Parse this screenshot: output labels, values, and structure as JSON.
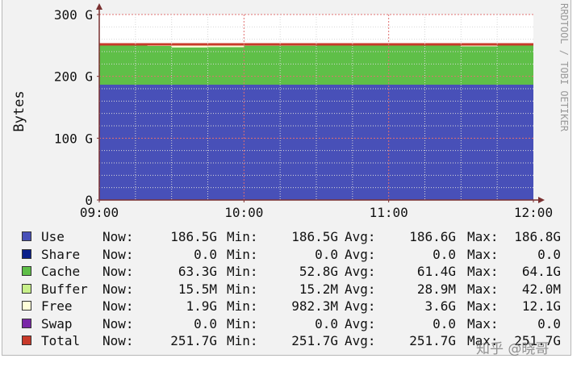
{
  "chart_data": {
    "type": "area",
    "title": "",
    "ylabel": "Bytes",
    "ylim": [
      0,
      300
    ],
    "y_ticks": [
      "0",
      "100 G",
      "200 G",
      "300 G"
    ],
    "x_ticks": [
      "09:00",
      "10:00",
      "11:00",
      "12:00"
    ],
    "xlim": [
      "09:00",
      "12:00"
    ],
    "grid": true,
    "side_text": "RRDTOOL / TOBI OETIKER",
    "x": [
      "09:00",
      "09:20",
      "09:30",
      "09:45",
      "10:00",
      "10:30",
      "11:00",
      "11:15",
      "11:30",
      "11:45",
      "12:00"
    ],
    "series": [
      {
        "name": "Use",
        "color": "#4850b8",
        "values": [
          186.5,
          186.6,
          186.6,
          186.6,
          186.6,
          186.6,
          186.6,
          186.6,
          186.6,
          186.6,
          186.6
        ]
      },
      {
        "name": "Share",
        "color": "#0a1f8a",
        "values": [
          0,
          0,
          0,
          0,
          0,
          0,
          0,
          0,
          0,
          0,
          0
        ]
      },
      {
        "name": "Cache",
        "color": "#5fbf48",
        "values": [
          64.1,
          62.5,
          60.2,
          60.5,
          63.0,
          64.0,
          63.8,
          63.5,
          62.0,
          64.0,
          64.0
        ]
      },
      {
        "name": "Buffer",
        "color": "#c8f08a",
        "values": [
          0.02,
          0.02,
          0.02,
          0.02,
          0.02,
          0.02,
          0.02,
          0.02,
          0.02,
          0.02,
          0.02
        ]
      },
      {
        "name": "Free",
        "color": "#fefed8",
        "values": [
          1.1,
          2.6,
          4.9,
          4.6,
          2.1,
          1.1,
          1.3,
          1.6,
          3.1,
          1.1,
          1.1
        ]
      },
      {
        "name": "Swap",
        "color": "#7a28a8",
        "values": [
          0,
          0,
          0,
          0,
          0,
          0,
          0,
          0,
          0,
          0,
          0
        ]
      }
    ],
    "total": {
      "name": "Total",
      "color": "#c83a2a",
      "value": 251.7
    }
  },
  "legend": [
    {
      "name": "Use",
      "color": "#4850b8",
      "now_label": "Now:",
      "now": "186.5G",
      "min_label": "Min:",
      "min": "186.5G",
      "avg_label": "Avg:",
      "avg": "186.6G",
      "max_label": "Max:",
      "max": "186.8G"
    },
    {
      "name": "Share",
      "color": "#0a1f8a",
      "now_label": "Now:",
      "now": "0.0",
      "min_label": "Min:",
      "min": "0.0",
      "avg_label": "Avg:",
      "avg": "0.0",
      "max_label": "Max:",
      "max": "0.0"
    },
    {
      "name": "Cache",
      "color": "#5fbf48",
      "now_label": "Now:",
      "now": "63.3G",
      "min_label": "Min:",
      "min": "52.8G",
      "avg_label": "Avg:",
      "avg": "61.4G",
      "max_label": "Max:",
      "max": "64.1G"
    },
    {
      "name": "Buffer",
      "color": "#c8f08a",
      "now_label": "Now:",
      "now": "15.5M",
      "min_label": "Min:",
      "min": "15.2M",
      "avg_label": "Avg:",
      "avg": "28.9M",
      "max_label": "Max:",
      "max": "42.0M"
    },
    {
      "name": "Free",
      "color": "#fefed8",
      "now_label": "Now:",
      "now": "1.9G",
      "min_label": "Min:",
      "min": "982.3M",
      "avg_label": "Avg:",
      "avg": "3.6G",
      "max_label": "Max:",
      "max": "12.1G"
    },
    {
      "name": "Swap",
      "color": "#7a28a8",
      "now_label": "Now:",
      "now": "0.0",
      "min_label": "Min:",
      "min": "0.0",
      "avg_label": "Avg:",
      "avg": "0.0",
      "max_label": "Max:",
      "max": "0.0"
    },
    {
      "name": "Total",
      "color": "#c83a2a",
      "now_label": "Now:",
      "now": "251.7G",
      "min_label": "Min:",
      "min": "251.7G",
      "avg_label": "Avg:",
      "avg": "251.7G",
      "max_label": "Max:",
      "max": "251.7G"
    }
  ],
  "watermark": "知乎 @晓哥"
}
